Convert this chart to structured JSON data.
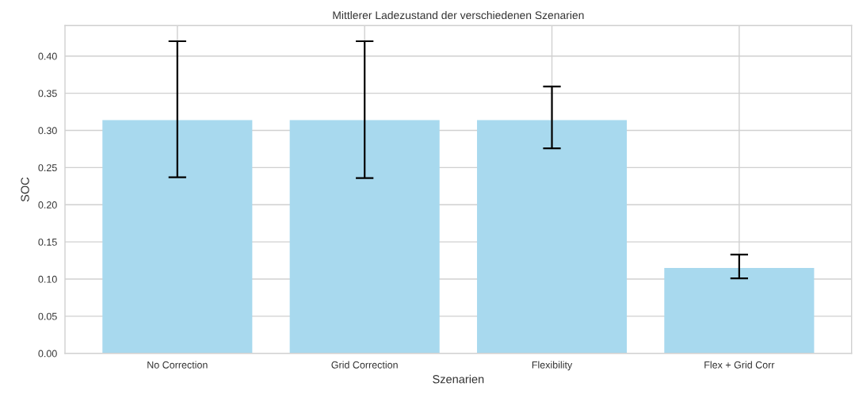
{
  "chart_data": {
    "type": "bar",
    "title": "Mittlerer Ladezustand der verschiedenen Szenarien",
    "xlabel": "Szenarien",
    "ylabel": "SOC",
    "categories": [
      "No Correction",
      "Grid Correction",
      "Flexibility",
      "Flex + Grid Corr"
    ],
    "values": [
      0.314,
      0.314,
      0.314,
      0.115
    ],
    "errors": [
      [
        0.237,
        0.42
      ],
      [
        0.236,
        0.42
      ],
      [
        0.276,
        0.359
      ],
      [
        0.101,
        0.133
      ]
    ],
    "color": "#a8d9ee",
    "ylim": [
      0,
      0.441
    ],
    "yticks": [
      {
        "value": 0,
        "label": "0.00"
      },
      {
        "value": 0.05,
        "label": "0.05"
      },
      {
        "value": 0.1,
        "label": "0.10"
      },
      {
        "value": 0.15,
        "label": "0.15"
      },
      {
        "value": 0.2,
        "label": "0.20"
      },
      {
        "value": 0.25,
        "label": "0.25"
      },
      {
        "value": 0.3,
        "label": "0.30"
      },
      {
        "value": 0.35,
        "label": "0.35"
      },
      {
        "value": 0.4,
        "label": "0.40"
      }
    ],
    "grid": true
  }
}
